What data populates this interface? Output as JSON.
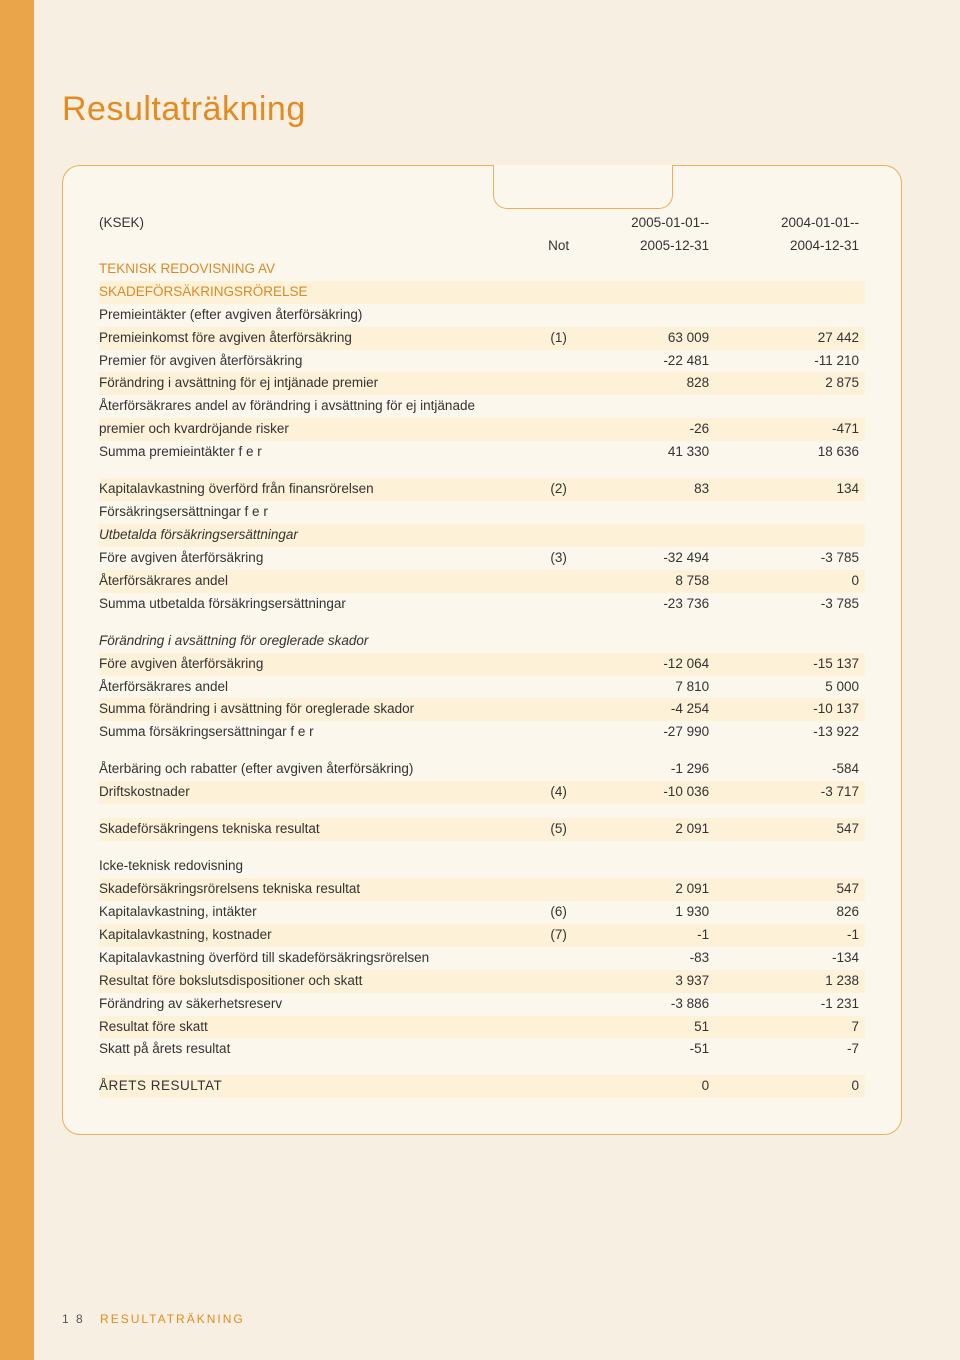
{
  "colors": {
    "page_bg": "#f6efe2",
    "box_bg": "#fcf7ec",
    "border": "#e8b05a",
    "accent_bar": "#eaa54a",
    "shade_row": "#fdf1d8",
    "heading": "#e58a1f",
    "section": "#d88a2a",
    "text": "#333333"
  },
  "page_number": "1 8",
  "footer_section": "RESULTATRÄKNING",
  "title": "Resultaträkning",
  "header": {
    "ksek": "(KSEK)",
    "not": "Not",
    "col1_a": "2005-01-01--",
    "col1_b": "2005-12-31",
    "col2_a": "2004-01-01--",
    "col2_b": "2004-12-31"
  },
  "rows": [
    {
      "type": "section",
      "label": "TEKNISK REDOVISNING AV"
    },
    {
      "type": "section",
      "label": "SKADEFÖRSÄKRINGSRÖRELSE",
      "shade": true
    },
    {
      "type": "data",
      "label": "Premieintäkter (efter avgiven återförsäkring)"
    },
    {
      "type": "data",
      "label": "Premieinkomst före avgiven återförsäkring",
      "note": "(1)",
      "v1": "63 009",
      "v2": "27 442",
      "shade": true
    },
    {
      "type": "data",
      "label": "Premier för avgiven återförsäkring",
      "v1": "-22 481",
      "v2": "-11 210"
    },
    {
      "type": "data",
      "label": "Förändring i avsättning för ej intjänade premier",
      "v1": "828",
      "v2": "2 875",
      "shade": true
    },
    {
      "type": "data",
      "label": "Återförsäkrares andel av förändring i avsättning för ej intjänade"
    },
    {
      "type": "data",
      "label": "premier och kvardröjande risker",
      "v1": "-26",
      "v2": "-471",
      "shade": true
    },
    {
      "type": "data",
      "label": "Summa premieintäkter f e r",
      "v1": "41 330",
      "v2": "18 636"
    },
    {
      "type": "spacer"
    },
    {
      "type": "data",
      "label": "Kapitalavkastning överförd från finansrörelsen",
      "note": "(2)",
      "v1": "83",
      "v2": "134",
      "shade": true
    },
    {
      "type": "data",
      "label": "Försäkringsersättningar f e r"
    },
    {
      "type": "data",
      "label": "Utbetalda försäkringsersättningar",
      "italic": true,
      "shade": true
    },
    {
      "type": "data",
      "label": "Före avgiven återförsäkring",
      "note": "(3)",
      "v1": "-32 494",
      "v2": "-3 785"
    },
    {
      "type": "data",
      "label": "Återförsäkrares andel",
      "v1": "8 758",
      "v2": "0",
      "shade": true
    },
    {
      "type": "data",
      "label": "Summa utbetalda försäkringsersättningar",
      "v1": "-23 736",
      "v2": "-3 785"
    },
    {
      "type": "spacer"
    },
    {
      "type": "data",
      "label": "Förändring i avsättning för oreglerade skador",
      "italic": true
    },
    {
      "type": "data",
      "label": "Före avgiven återförsäkring",
      "v1": "-12 064",
      "v2": "-15 137",
      "shade": true
    },
    {
      "type": "data",
      "label": "Återförsäkrares andel",
      "v1": "7 810",
      "v2": "5 000"
    },
    {
      "type": "data",
      "label": "Summa förändring i avsättning för oreglerade skador",
      "v1": "-4 254",
      "v2": "-10 137",
      "shade": true
    },
    {
      "type": "data",
      "label": "Summa försäkringsersättningar f e r",
      "v1": "-27 990",
      "v2": "-13 922"
    },
    {
      "type": "spacer"
    },
    {
      "type": "data",
      "label": "Återbäring och rabatter (efter avgiven återförsäkring)",
      "v1": "-1 296",
      "v2": "-584"
    },
    {
      "type": "data",
      "label": "Driftskostnader",
      "note": "(4)",
      "v1": "-10 036",
      "v2": "-3 717",
      "shade": true
    },
    {
      "type": "spacer"
    },
    {
      "type": "data",
      "label": "Skadeförsäkringens tekniska resultat",
      "note": "(5)",
      "v1": "2 091",
      "v2": "547",
      "shade": true
    },
    {
      "type": "spacer"
    },
    {
      "type": "data",
      "label": "Icke-teknisk redovisning"
    },
    {
      "type": "data",
      "label": "Skadeförsäkringsrörelsens tekniska resultat",
      "v1": "2 091",
      "v2": "547",
      "shade": true
    },
    {
      "type": "data",
      "label": "Kapitalavkastning, intäkter",
      "note": "(6)",
      "v1": "1 930",
      "v2": "826"
    },
    {
      "type": "data",
      "label": "Kapitalavkastning, kostnader",
      "note": "(7)",
      "v1": "-1",
      "v2": "-1",
      "shade": true
    },
    {
      "type": "data",
      "label": "Kapitalavkastning överförd till skadeförsäkringsrörelsen",
      "v1": "-83",
      "v2": "-134"
    },
    {
      "type": "data",
      "label": "Resultat före bokslutsdispositioner och skatt",
      "v1": "3 937",
      "v2": "1 238",
      "shade": true
    },
    {
      "type": "data",
      "label": "Förändring av säkerhetsreserv",
      "v1": "-3 886",
      "v2": "-1 231"
    },
    {
      "type": "data",
      "label": "Resultat före skatt",
      "v1": "51",
      "v2": "7",
      "shade": true
    },
    {
      "type": "data",
      "label": "Skatt på årets resultat",
      "v1": "-51",
      "v2": "-7"
    },
    {
      "type": "spacer"
    },
    {
      "type": "data",
      "label": "ÅRETS RESULTAT",
      "v1": "0",
      "v2": "0",
      "caps": true,
      "shade": true
    }
  ]
}
